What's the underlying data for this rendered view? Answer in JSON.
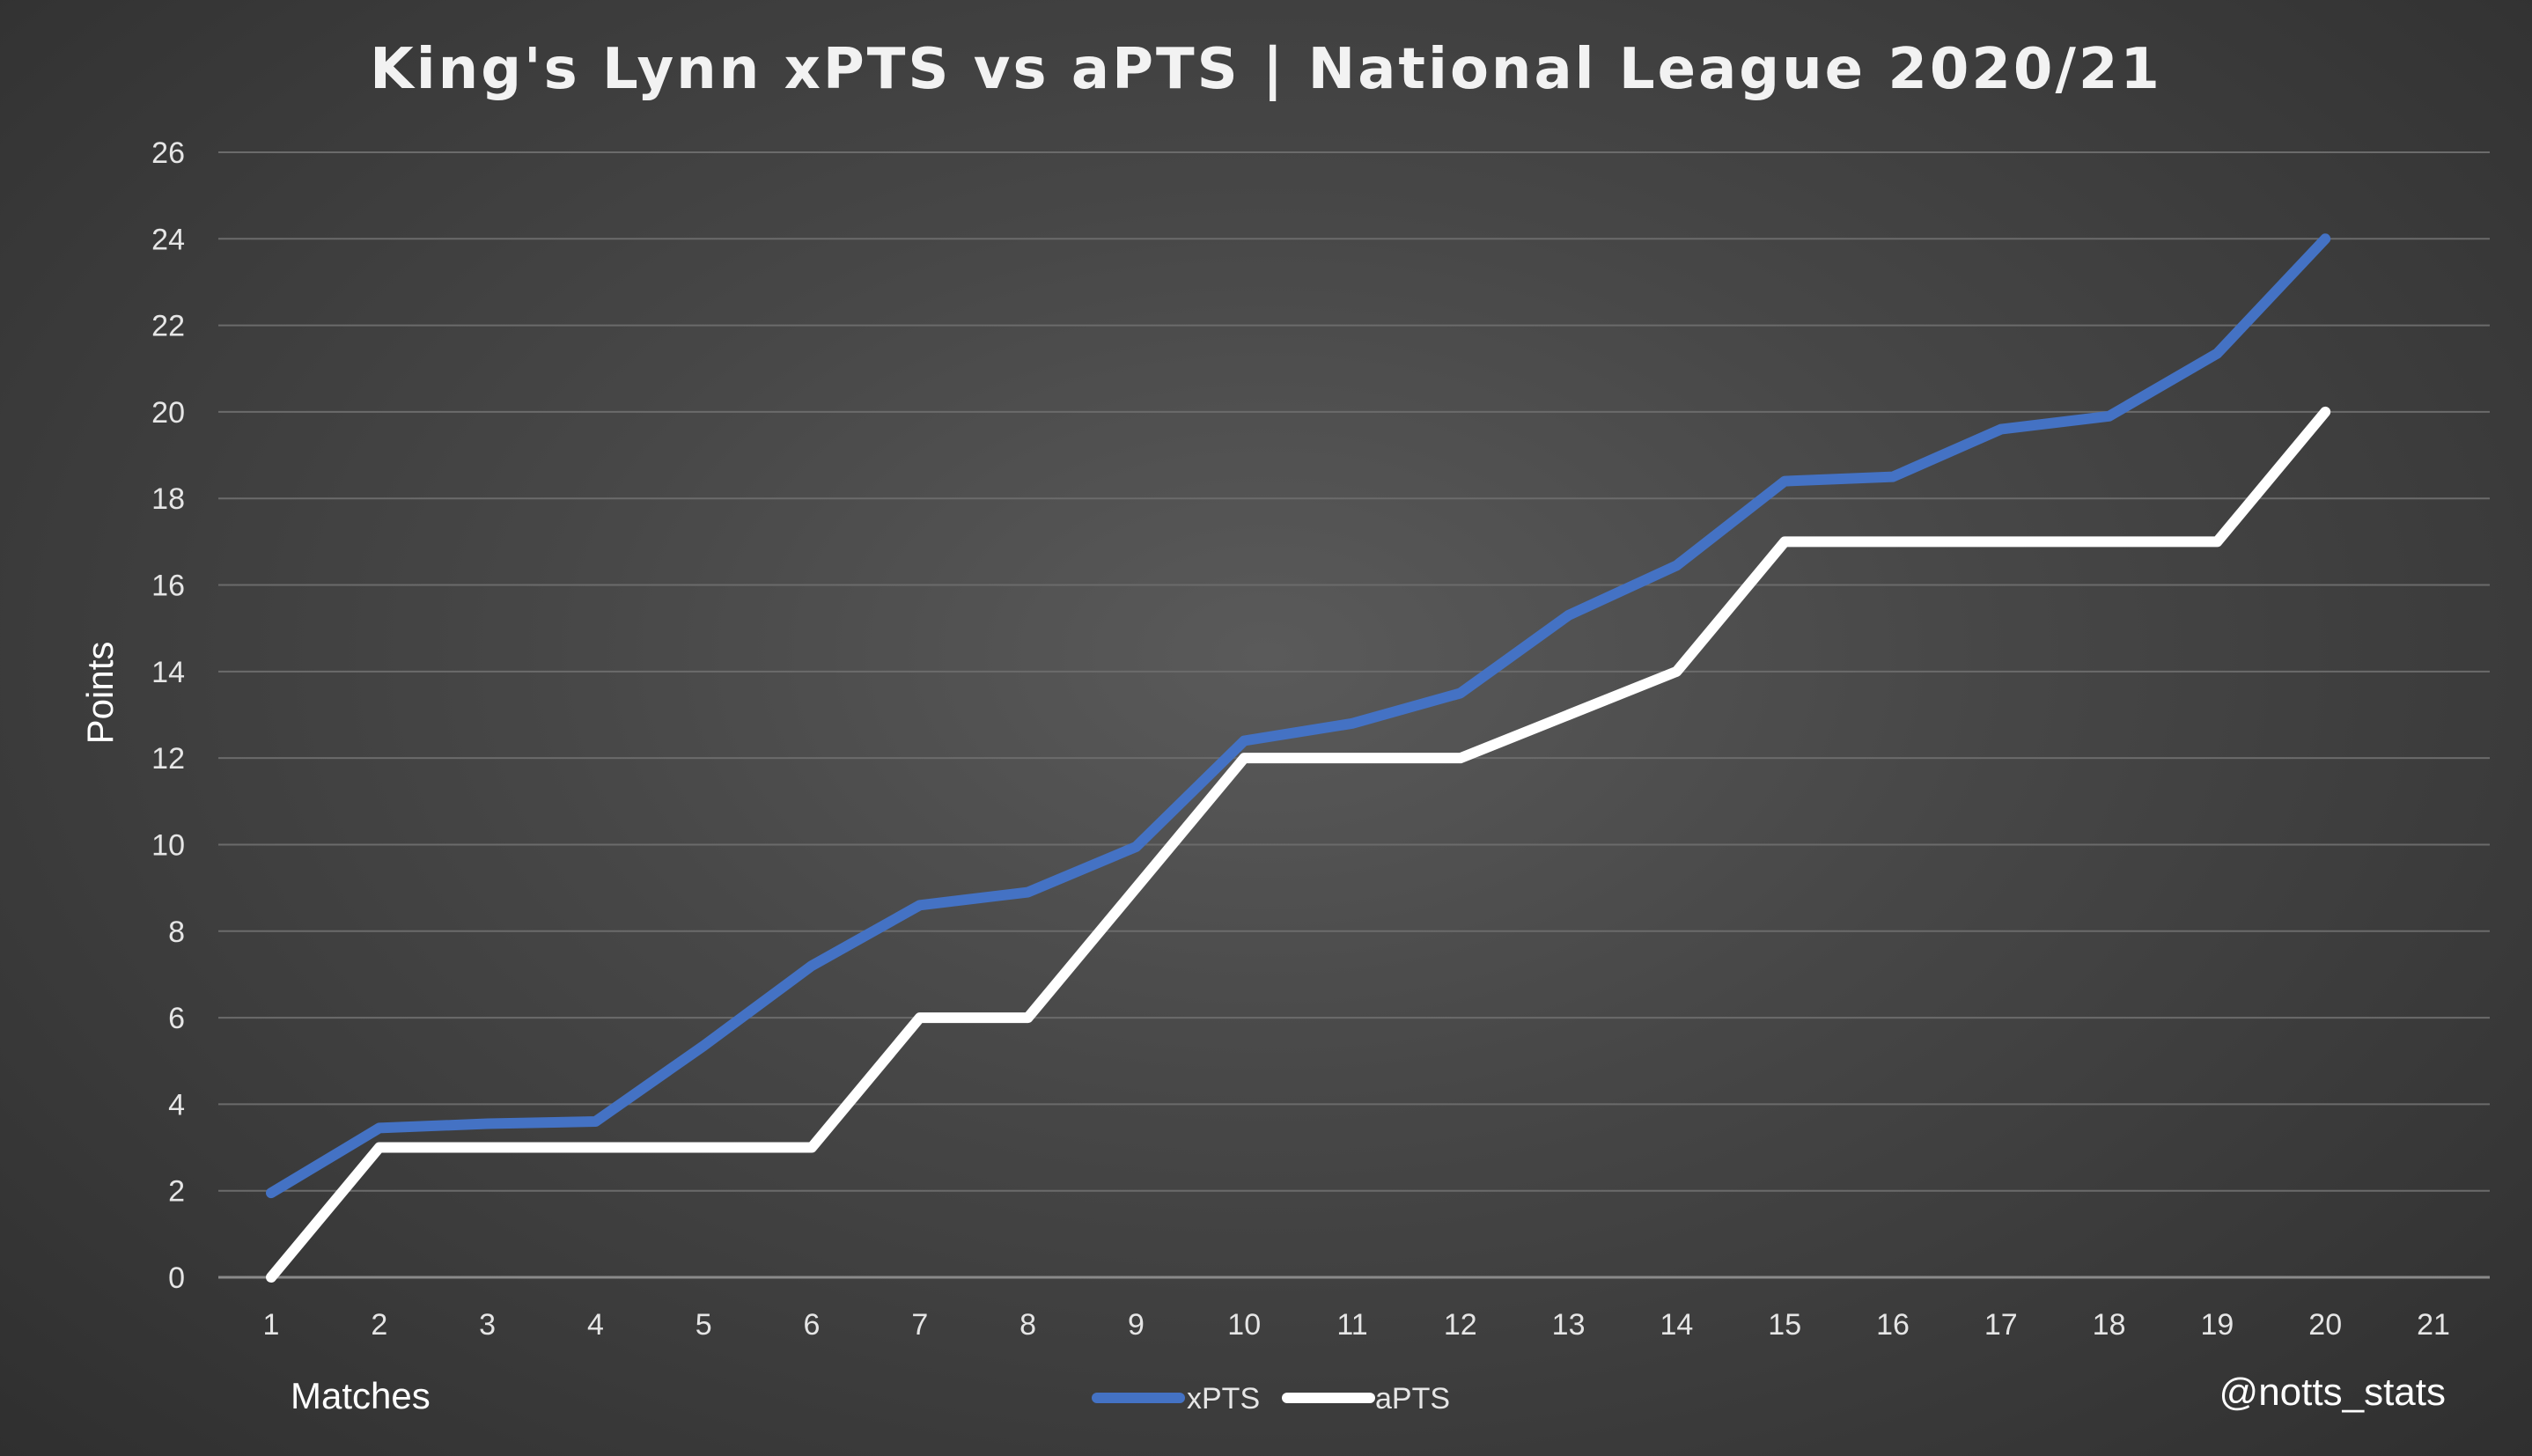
{
  "chart_data": {
    "type": "line",
    "title": "King's Lynn xPTS vs aPTS | National League 2020/21",
    "xlabel": "Matches",
    "ylabel": "Points",
    "categories": [
      "1",
      "2",
      "3",
      "4",
      "5",
      "6",
      "7",
      "8",
      "9",
      "10",
      "11",
      "12",
      "13",
      "14",
      "15",
      "16",
      "17",
      "18",
      "19",
      "20",
      "21"
    ],
    "ylim": [
      0,
      26
    ],
    "yticks": [
      "0",
      "2",
      "4",
      "6",
      "8",
      "10",
      "12",
      "14",
      "16",
      "18",
      "20",
      "22",
      "24",
      "26"
    ],
    "grid": true,
    "legend_position": "bottom-center",
    "series": [
      {
        "name": "xPTS",
        "color": "#4472c4",
        "values": [
          1.95,
          3.45,
          3.55,
          3.6,
          5.35,
          7.2,
          8.6,
          8.9,
          9.95,
          12.4,
          12.8,
          13.5,
          15.3,
          16.45,
          18.4,
          18.5,
          19.6,
          19.9,
          21.35,
          24.0,
          null
        ]
      },
      {
        "name": "aPTS",
        "color": "#ffffff",
        "values": [
          0,
          3,
          3,
          3,
          3,
          3,
          6,
          6,
          9,
          12,
          12,
          12,
          13,
          14,
          17,
          17,
          17,
          17,
          17,
          20,
          null
        ]
      }
    ],
    "credit": "@notts_stats"
  },
  "colors": {
    "grid": "#6b6b6b",
    "axis": "#8a8a8a"
  }
}
